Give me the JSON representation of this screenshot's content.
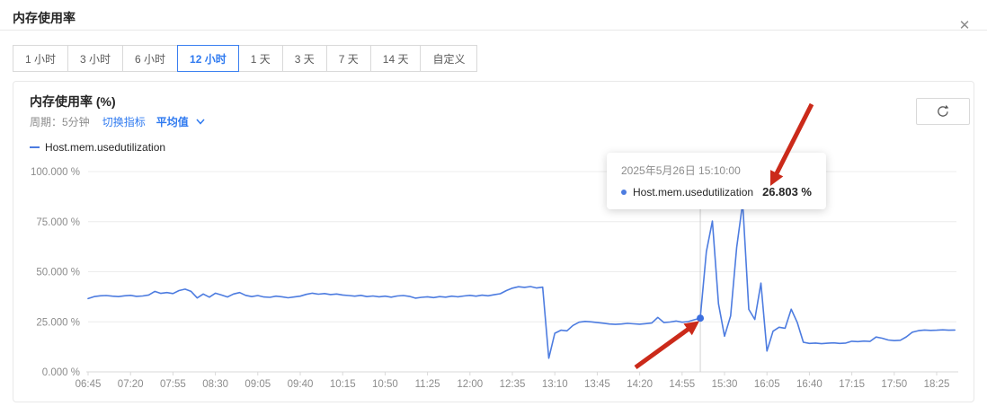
{
  "page": {
    "title": "内存使用率"
  },
  "header": {
    "close_icon_glyph": "✕"
  },
  "time_tabs": {
    "items": [
      {
        "label": "1 小时",
        "selected": false
      },
      {
        "label": "3 小时",
        "selected": false
      },
      {
        "label": "6 小时",
        "selected": false
      },
      {
        "label": "12 小时",
        "selected": true
      },
      {
        "label": "1 天",
        "selected": false
      },
      {
        "label": "3 天",
        "selected": false
      },
      {
        "label": "7 天",
        "selected": false
      },
      {
        "label": "14 天",
        "selected": false
      },
      {
        "label": "自定义",
        "selected": false
      }
    ]
  },
  "card": {
    "title": "内存使用率 (%)",
    "period_label": "周期：5分钟",
    "switch_metric_label": "切换指标",
    "aggregation_label": "平均值"
  },
  "tooltip": {
    "timestamp": "2025年5月26日 15:10:00",
    "value_text": "26.803 %"
  },
  "colors": {
    "line_blue": "#4d7ce0",
    "dot_blue": "#3c6fe0",
    "accent_blue": "#2f7af0",
    "arrow_red": "#cb2a1a",
    "axis_gray": "#8c8c8c",
    "grid_gray": "#ececec"
  },
  "chart_data": {
    "type": "line",
    "title": "内存使用率 (%)",
    "unit": "%",
    "period": "5分钟",
    "aggregation": "平均值",
    "ylim": [
      0,
      100
    ],
    "grid": true,
    "legend_position": "top-left",
    "y_tick_labels": [
      "100.000 %",
      "75.000 %",
      "50.000 %",
      "25.000 %",
      "0.000 %"
    ],
    "y_tick_values": [
      100,
      75,
      50,
      25,
      0
    ],
    "x_start": "06:45",
    "x_step_minutes": 5,
    "x_tick_every": 7,
    "x_tick_labels": [
      "06:45",
      "07:20",
      "07:55",
      "08:30",
      "09:05",
      "09:40",
      "10:15",
      "10:50",
      "11:25",
      "12:00",
      "12:35",
      "13:10",
      "13:45",
      "14:20",
      "14:55",
      "15:30",
      "16:05",
      "16:40",
      "17:15",
      "17:50",
      "18:25"
    ],
    "series": [
      {
        "name": "Host.mem.usedutilization",
        "color": "#4d7ce0",
        "values": [
          36.6,
          37.6,
          38.0,
          38.1,
          37.8,
          37.6,
          38.0,
          38.2,
          37.7,
          37.9,
          38.4,
          40.2,
          39.2,
          39.6,
          39.1,
          40.6,
          41.3,
          40.2,
          36.9,
          38.9,
          37.3,
          39.3,
          38.4,
          37.4,
          38.9,
          39.6,
          38.2,
          37.6,
          38.1,
          37.4,
          37.2,
          37.8,
          37.5,
          37.0,
          37.4,
          37.8,
          38.7,
          39.3,
          38.8,
          39.1,
          38.6,
          38.9,
          38.4,
          38.1,
          37.8,
          38.2,
          37.6,
          37.9,
          37.5,
          37.8,
          37.3,
          37.9,
          38.1,
          37.7,
          36.8,
          37.2,
          37.5,
          37.1,
          37.6,
          37.3,
          37.8,
          37.5,
          37.9,
          38.2,
          37.8,
          38.3,
          38.0,
          38.5,
          39.0,
          40.6,
          41.8,
          42.5,
          42.2,
          42.6,
          41.9,
          42.3,
          6.8,
          19.3,
          20.8,
          20.5,
          23.2,
          24.8,
          25.2,
          25.0,
          24.6,
          24.3,
          23.9,
          23.7,
          23.9,
          24.2,
          24.0,
          23.8,
          24.1,
          24.4,
          27.2,
          24.6,
          24.9,
          25.4,
          24.8,
          25.1,
          26.0,
          26.803,
          60.0,
          75.3,
          34.0,
          17.8,
          28.0,
          62.0,
          84.5,
          31.2,
          26.2,
          44.3,
          10.4,
          20.3,
          22.3,
          21.8,
          31.3,
          24.7,
          14.8,
          14.2,
          14.4,
          14.1,
          14.3,
          14.5,
          14.2,
          14.4,
          15.3,
          15.1,
          15.4,
          15.2,
          17.4,
          16.8,
          15.9,
          15.6,
          15.8,
          17.5,
          19.8,
          20.6,
          20.9,
          20.7,
          20.8,
          21.0,
          20.8,
          20.9
        ]
      }
    ],
    "highlight": {
      "index": 101,
      "time": "15:10",
      "value": 26.803,
      "date": "2025年5月26日"
    }
  }
}
